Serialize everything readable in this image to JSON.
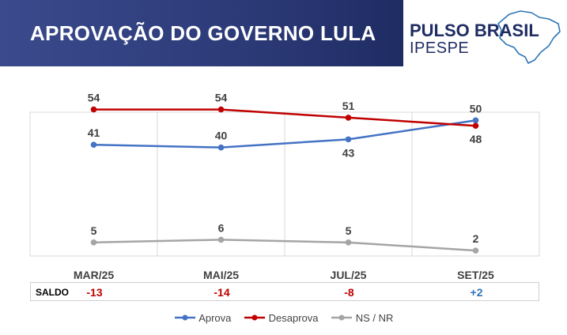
{
  "header": {
    "title": "APROVAÇÃO DO GOVERNO LULA",
    "logo_name": "PULSO BRASIL",
    "logo_sub": "IPESPE"
  },
  "colors": {
    "banner": "#2c3a78",
    "aprova": "#4472c4",
    "desaprova": "#c00000",
    "nsnr": "#a5a5a5",
    "saldo_negative": "#c00000",
    "saldo_positive": "#2e75b6"
  },
  "chart_data": {
    "type": "line",
    "categories": [
      "MAR/25",
      "MAI/25",
      "JUL/25",
      "SET/25"
    ],
    "series": [
      {
        "name": "Aprova",
        "values": [
          41,
          40,
          43,
          50
        ],
        "color": "#4472c4",
        "label_position": [
          "above",
          "above",
          "below",
          "above"
        ]
      },
      {
        "name": "Desaprova",
        "values": [
          54,
          54,
          51,
          48
        ],
        "color": "#c00000",
        "label_position": [
          "above",
          "above",
          "above",
          "below"
        ]
      },
      {
        "name": "NS / NR",
        "values": [
          5,
          6,
          5,
          2
        ],
        "color": "#a5a5a5",
        "label_position": [
          "above",
          "above",
          "above",
          "above"
        ]
      }
    ],
    "ylim": [
      0,
      60
    ],
    "grid": "vertical",
    "legend": "bottom"
  },
  "saldo": {
    "label": "SALDO",
    "values": [
      "-13",
      "-14",
      "-8",
      "+2"
    ]
  }
}
